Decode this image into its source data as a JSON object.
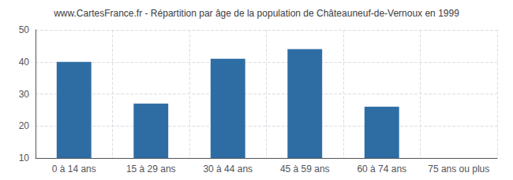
{
  "chart_data": {
    "type": "bar",
    "title": "www.CartesFrance.fr - Répartition par âge de la population de Châteauneuf-de-Vernoux en 1999",
    "categories": [
      "0 à 14 ans",
      "15 à 29 ans",
      "30 à 44 ans",
      "45 à 59 ans",
      "60 à 74 ans",
      "75 ans ou plus"
    ],
    "values": [
      40,
      27,
      41,
      44,
      26,
      10
    ],
    "color": "#2e6da4",
    "ylim": [
      10,
      50
    ],
    "yticks": [
      10,
      20,
      30,
      40,
      50
    ],
    "grid": true
  }
}
